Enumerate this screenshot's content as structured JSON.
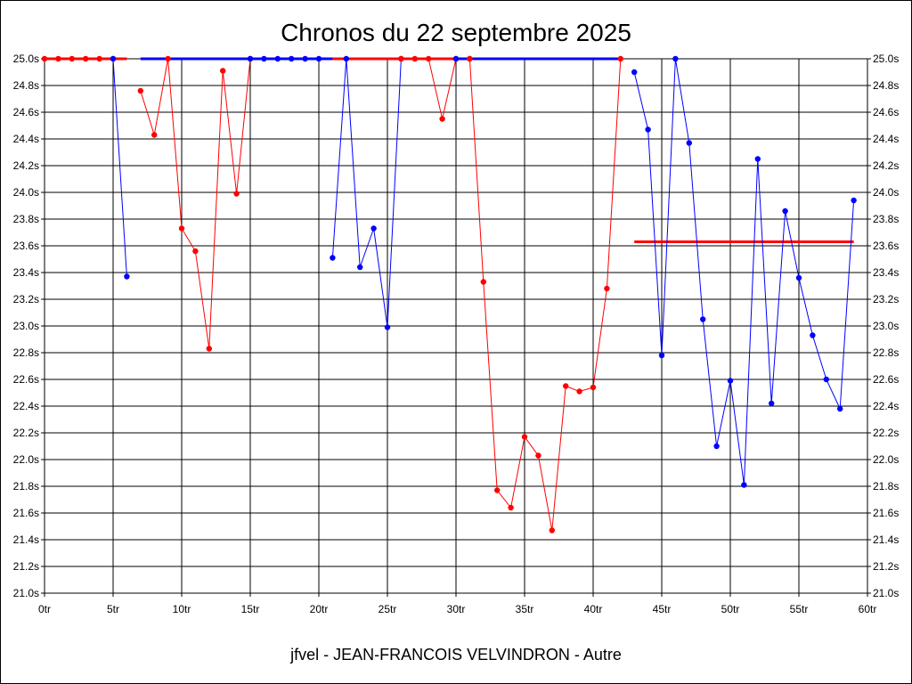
{
  "chart_data": {
    "type": "line",
    "title": "Chronos du 22 septembre 2025",
    "subtitle": "jfvel - JEAN-FRANCOIS VELVINDRON - Autre",
    "x_unit_suffix": "tr",
    "y_unit_suffix": "s",
    "xlim": [
      0,
      60
    ],
    "ylim": [
      21.0,
      25.0
    ],
    "x_ticks": [
      0,
      5,
      10,
      15,
      20,
      25,
      30,
      35,
      40,
      45,
      50,
      55,
      60
    ],
    "y_ticks": [
      21.0,
      21.2,
      21.4,
      21.6,
      21.8,
      22.0,
      22.2,
      22.4,
      22.6,
      22.8,
      23.0,
      23.2,
      23.4,
      23.6,
      23.8,
      24.0,
      24.2,
      24.4,
      24.6,
      24.8,
      25.0
    ],
    "grid": true,
    "segments": [
      {
        "color": "#ff0000",
        "points": [
          [
            0,
            25.0
          ],
          [
            1,
            25.0
          ],
          [
            2,
            25.0
          ],
          [
            3,
            25.0
          ],
          [
            4,
            25.0
          ],
          [
            5,
            25.0
          ]
        ]
      },
      {
        "color": "#0000ff",
        "points": [
          [
            5,
            25.0
          ],
          [
            6,
            23.37
          ]
        ]
      },
      {
        "color": "#ff0000",
        "points": [
          [
            7,
            24.76
          ],
          [
            8,
            24.43
          ],
          [
            9,
            25.0
          ],
          [
            10,
            23.73
          ],
          [
            11,
            23.56
          ],
          [
            12,
            22.83
          ],
          [
            13,
            24.91
          ],
          [
            14,
            23.99
          ],
          [
            15,
            25.0
          ]
        ]
      },
      {
        "color": "#0000ff",
        "points": [
          [
            15,
            25.0
          ],
          [
            16,
            25.0
          ],
          [
            17,
            25.0
          ],
          [
            18,
            25.0
          ],
          [
            19,
            25.0
          ],
          [
            20,
            25.0
          ]
        ]
      },
      {
        "color": "#0000ff",
        "points": [
          [
            21,
            23.51
          ],
          [
            22,
            25.0
          ],
          [
            23,
            23.44
          ],
          [
            24,
            23.73
          ],
          [
            25,
            22.99
          ],
          [
            26,
            25.0
          ]
        ]
      },
      {
        "color": "#ff0000",
        "points": [
          [
            26,
            25.0
          ],
          [
            27,
            25.0
          ],
          [
            28,
            25.0
          ],
          [
            29,
            24.55
          ],
          [
            30,
            25.0
          ]
        ]
      },
      {
        "color": "#0000ff",
        "points": [
          [
            30,
            25.0
          ],
          [
            31,
            25.0
          ]
        ]
      },
      {
        "color": "#ff0000",
        "points": [
          [
            31,
            25.0
          ],
          [
            32,
            23.33
          ],
          [
            33,
            21.77
          ],
          [
            34,
            21.64
          ],
          [
            35,
            22.17
          ],
          [
            36,
            22.03
          ],
          [
            37,
            21.47
          ],
          [
            38,
            22.55
          ],
          [
            39,
            22.51
          ],
          [
            40,
            22.54
          ],
          [
            41,
            23.28
          ],
          [
            42,
            25.0
          ]
        ]
      },
      {
        "color": "#0000ff",
        "points": [
          [
            43,
            24.9
          ],
          [
            44,
            24.47
          ],
          [
            45,
            22.78
          ],
          [
            46,
            25.0
          ],
          [
            47,
            24.37
          ],
          [
            48,
            23.05
          ],
          [
            49,
            22.1
          ],
          [
            50,
            22.59
          ],
          [
            51,
            21.81
          ],
          [
            52,
            24.25
          ],
          [
            53,
            22.42
          ],
          [
            54,
            23.86
          ],
          [
            55,
            23.36
          ],
          [
            56,
            22.93
          ],
          [
            57,
            22.6
          ],
          [
            58,
            22.38
          ],
          [
            59,
            23.94
          ]
        ]
      }
    ],
    "thick_lines": [
      {
        "color": "#ff0000",
        "x": [
          0,
          6
        ],
        "y": 25.0
      },
      {
        "color": "#0000ff",
        "x": [
          7,
          21
        ],
        "y": 25.0
      },
      {
        "color": "#ff0000",
        "x": [
          21,
          30
        ],
        "y": 25.0
      },
      {
        "color": "#0000ff",
        "x": [
          30,
          42
        ],
        "y": 25.0
      },
      {
        "color": "#ff0000",
        "x": [
          43,
          59
        ],
        "y": 23.63
      }
    ]
  }
}
